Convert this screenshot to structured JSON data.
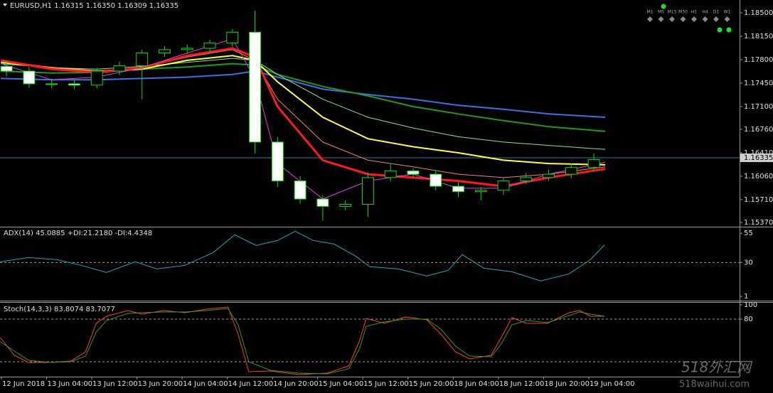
{
  "chart_data": [
    {
      "type": "candlestick",
      "title": "EURUSD,H1  1.16315 1.16350 1.16309 1.16335",
      "xlim": [
        -3.15,
        127.8
      ],
      "ylim": [
        1.15317,
        1.18691
      ],
      "yticks": [
        {
          "value": 1.185,
          "label": "1.18500"
        },
        {
          "value": 1.1815,
          "label": "1.18150"
        },
        {
          "value": 1.178,
          "label": "1.17800"
        },
        {
          "value": 1.1745,
          "label": "1.17450"
        },
        {
          "value": 1.171,
          "label": "1.17100"
        },
        {
          "value": 1.1676,
          "label": "1.16760"
        },
        {
          "value": 1.1641,
          "label": "1.16410"
        },
        {
          "value": 1.1606,
          "label": "1.16060"
        },
        {
          "value": 1.1571,
          "label": "1.15710"
        },
        {
          "value": 1.1537,
          "label": "1.15370"
        }
      ],
      "hline": {
        "value": 1.16335,
        "label": "1.16335",
        "color": "#4a6fa8"
      },
      "candles": {
        "up_color": "#000000",
        "down_color": "#ffffff",
        "outline_color": "#00e000",
        "x": [
          -2,
          2,
          6,
          10,
          14,
          18,
          22,
          26,
          30,
          34,
          38,
          42,
          46,
          50,
          54,
          58,
          62,
          66,
          70,
          74,
          78,
          82,
          86,
          90,
          94,
          98,
          102
        ],
        "open": [
          1.177,
          1.1763,
          1.1744,
          1.1744,
          1.1742,
          1.1763,
          1.1771,
          1.179,
          1.1795,
          1.1797,
          1.1805,
          1.1821,
          1.1657,
          1.1599,
          1.1572,
          1.1561,
          1.1564,
          1.1604,
          1.1614,
          1.1609,
          1.1591,
          1.1583,
          1.1585,
          1.1599,
          1.1604,
          1.1609,
          1.1619
        ],
        "high": [
          1.1778,
          1.1769,
          1.1752,
          1.175,
          1.1768,
          1.1777,
          1.1795,
          1.18,
          1.1803,
          1.181,
          1.1826,
          1.1853,
          1.1665,
          1.1606,
          1.1578,
          1.157,
          1.1612,
          1.1624,
          1.1618,
          1.1615,
          1.1597,
          1.159,
          1.1604,
          1.1611,
          1.1616,
          1.1625,
          1.164
        ],
        "low": [
          1.1755,
          1.1738,
          1.1737,
          1.1736,
          1.1737,
          1.1757,
          1.1721,
          1.1784,
          1.1789,
          1.1791,
          1.1799,
          1.164,
          1.159,
          1.1565,
          1.154,
          1.1555,
          1.1545,
          1.1598,
          1.1603,
          1.1585,
          1.1575,
          1.157,
          1.1578,
          1.1594,
          1.1599,
          1.1603,
          1.1614
        ],
        "close": [
          1.1763,
          1.1744,
          1.1744,
          1.1742,
          1.1763,
          1.1771,
          1.179,
          1.1795,
          1.1797,
          1.1805,
          1.1821,
          1.1657,
          1.1599,
          1.1572,
          1.1561,
          1.1564,
          1.1604,
          1.1614,
          1.1609,
          1.1591,
          1.1583,
          1.1585,
          1.1599,
          1.1604,
          1.1609,
          1.1619,
          1.1631
        ]
      },
      "line_x": [
        -3,
        6,
        14,
        22,
        30,
        38,
        42,
        46,
        54,
        62,
        70,
        78,
        86,
        94,
        104
      ],
      "series": [
        {
          "color": "#3f6fe0",
          "width": 2,
          "values": [
            1.1752,
            1.175,
            1.175,
            1.1752,
            1.1754,
            1.1758,
            1.1763,
            1.1754,
            1.1736,
            1.1728,
            1.1721,
            1.1712,
            1.1706,
            1.1699,
            1.1694
          ]
        },
        {
          "color": "#1e9a1e",
          "width": 2,
          "values": [
            1.1763,
            1.176,
            1.1761,
            1.1766,
            1.1769,
            1.1774,
            1.1772,
            1.1758,
            1.174,
            1.1726,
            1.171,
            1.1699,
            1.1689,
            1.168,
            1.1673
          ]
        },
        {
          "color": "#90e090",
          "width": 1,
          "values": [
            1.1774,
            1.1768,
            1.1766,
            1.177,
            1.1776,
            1.1782,
            1.1779,
            1.1758,
            1.1721,
            1.1694,
            1.1678,
            1.1665,
            1.1657,
            1.1652,
            1.1646
          ]
        },
        {
          "color": "#ffff40",
          "width": 2,
          "values": [
            1.1776,
            1.1768,
            1.1763,
            1.1766,
            1.1779,
            1.1786,
            1.1779,
            1.1747,
            1.1694,
            1.1662,
            1.165,
            1.1641,
            1.163,
            1.1625,
            1.1623
          ]
        },
        {
          "color": "#f08070",
          "width": 1,
          "values": [
            1.1779,
            1.1768,
            1.1763,
            1.1768,
            1.1784,
            1.1795,
            1.1779,
            1.1721,
            1.1657,
            1.163,
            1.162,
            1.1609,
            1.1604,
            1.1609,
            1.162
          ]
        },
        {
          "color": "#ff1a1a",
          "width": 3,
          "values": [
            1.1779,
            1.1766,
            1.1761,
            1.1768,
            1.1786,
            1.1797,
            1.1784,
            1.171,
            1.163,
            1.1609,
            1.1604,
            1.1599,
            1.1591,
            1.1604,
            1.1617
          ]
        },
        {
          "color": "#e040e0",
          "width": 1,
          "values": [
            1.1774,
            1.175,
            1.1754,
            1.1768,
            1.179,
            1.1811,
            1.1752,
            1.1625,
            1.1572,
            1.1599,
            1.1609,
            1.1588,
            1.1588,
            1.1609,
            1.1627
          ]
        }
      ]
    },
    {
      "type": "line",
      "title": "ADX(14) 45.0885 +DI:21.2180 -DI:4.4348",
      "xlim": [
        -3.15,
        127.8
      ],
      "ylim": [
        -2,
        60
      ],
      "yticks": [
        55,
        30,
        1
      ],
      "levels": [
        30
      ],
      "line_x": [
        -3.1,
        1.9,
        6.9,
        10.7,
        15.7,
        20.8,
        24.6,
        29.6,
        34.6,
        38.4,
        42.2,
        46.0,
        49.1,
        52.3,
        56.0,
        59.8,
        62.3,
        67.4,
        72.4,
        76.2,
        78.7,
        82.5,
        87.5,
        92.6,
        97.6,
        101.4,
        103.9
      ],
      "series": [
        {
          "color": "#20a8b0",
          "width": 1,
          "values": [
            30.6,
            34.2,
            32.4,
            28.2,
            21.5,
            30.6,
            24.5,
            27.6,
            38.5,
            53.7,
            44.6,
            48.8,
            56.7,
            48.8,
            45.8,
            35.5,
            26.4,
            24.5,
            18.5,
            23.3,
            36.7,
            25.1,
            22.1,
            14.2,
            20.3,
            32.4,
            45.1
          ]
        }
      ]
    },
    {
      "type": "line",
      "title": "Stoch(14,3,3) 83.8074 83.7077",
      "xlim": [
        -3.15,
        127.8
      ],
      "ylim": [
        -1,
        102
      ],
      "yticks": [
        100,
        80
      ],
      "levels": [
        80,
        20
      ],
      "line_x": [
        -3.1,
        -0.6,
        1.9,
        5.7,
        9.4,
        12.0,
        13.9,
        15.7,
        19.5,
        22.0,
        25.8,
        29.6,
        33.4,
        37.2,
        39.0,
        40.9,
        44.7,
        49.7,
        54.8,
        58.6,
        60.5,
        61.7,
        64.9,
        68.6,
        72.4,
        74.9,
        77.5,
        80.0,
        83.8,
        85.6,
        87.5,
        90.1,
        93.8,
        97.6,
        99.5,
        101.4,
        103.9
      ],
      "series": [
        {
          "color": "#ff4020",
          "width": 1,
          "values": [
            54,
            29,
            19,
            19,
            21,
            34,
            74,
            84,
            92,
            87,
            92,
            89,
            94,
            97,
            59,
            6,
            7,
            2,
            4,
            14,
            49,
            81,
            74,
            83,
            79,
            59,
            34,
            24,
            29,
            54,
            82,
            74,
            74,
            89,
            92,
            84,
            84
          ]
        },
        {
          "color": "#2e9a2e",
          "width": 1,
          "values": [
            48,
            35,
            22,
            19,
            20,
            28,
            62,
            78,
            88,
            89,
            90,
            90,
            92,
            95,
            72,
            20,
            8,
            4,
            3,
            10,
            38,
            70,
            76,
            80,
            80,
            66,
            42,
            28,
            27,
            45,
            72,
            78,
            75,
            85,
            90,
            87,
            84
          ]
        }
      ],
      "xticks": [
        {
          "value": -2.9,
          "label": "12 Jun 2018"
        },
        {
          "value": 5.1,
          "label": "13 Jun 04:00"
        },
        {
          "value": 13.1,
          "label": "13 Jun 12:00"
        },
        {
          "value": 21.1,
          "label": "13 Jun 20:00"
        },
        {
          "value": 29.1,
          "label": "14 Jun 04:00"
        },
        {
          "value": 37.1,
          "label": "14 Jun 12:00"
        },
        {
          "value": 45.1,
          "label": "14 Jun 20:00"
        },
        {
          "value": 53.1,
          "label": "15 Jun 04:00"
        },
        {
          "value": 61.1,
          "label": "15 Jun 12:00"
        },
        {
          "value": 69.1,
          "label": "15 Jun 20:00"
        },
        {
          "value": 77.1,
          "label": "18 Jun 04:00"
        },
        {
          "value": 85.1,
          "label": "18 Jun 12:00"
        },
        {
          "value": 93.1,
          "label": "18 Jun 20:00"
        },
        {
          "value": 101.1,
          "label": "19 Jun 04:00"
        }
      ]
    }
  ],
  "toolbar": {
    "timeframes": [
      "M1",
      "M5",
      "M15",
      "M30",
      "H1",
      "H4",
      "D1",
      "W1"
    ]
  },
  "watermark": [
    "518外汇网",
    "518waihui.com"
  ]
}
